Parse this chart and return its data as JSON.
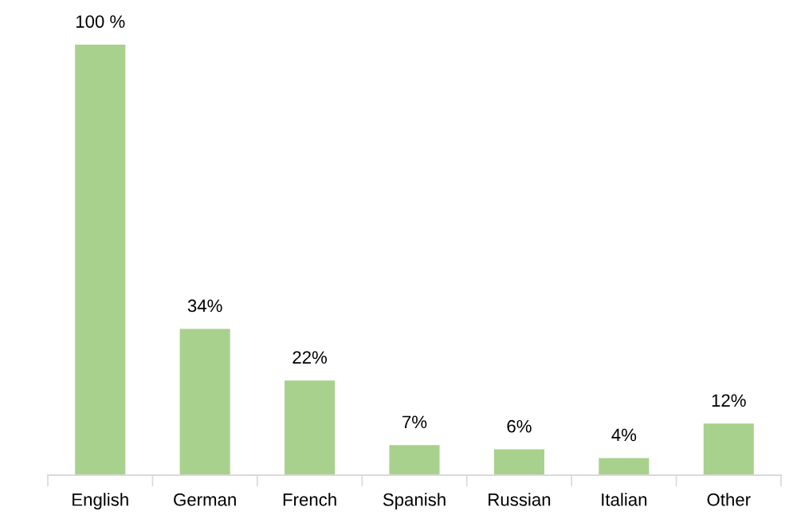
{
  "chart_data": {
    "type": "bar",
    "categories": [
      "English",
      "German",
      "French",
      "Spanish",
      "Russian",
      "Italian",
      "Other"
    ],
    "values": [
      100,
      34,
      22,
      7,
      6,
      4,
      12
    ],
    "value_labels": [
      "100 %",
      "34%",
      "22%",
      "7%",
      "6%",
      "4%",
      "12%"
    ],
    "color": "#a9d18e",
    "grid": false,
    "legend": false
  }
}
